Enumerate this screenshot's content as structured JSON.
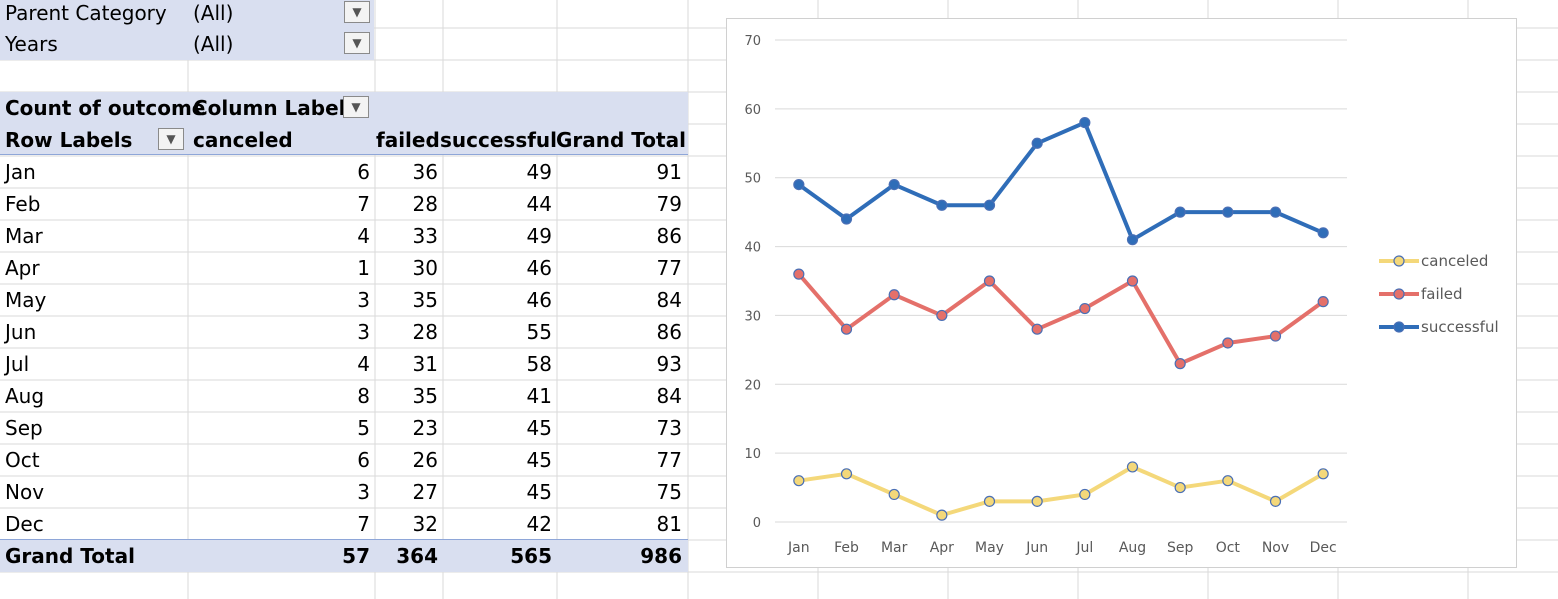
{
  "filters": [
    {
      "label": "Parent Category",
      "value": "(All)"
    },
    {
      "label": "Years",
      "value": "(All)"
    }
  ],
  "pivot": {
    "header_value_label": "Count of outcome",
    "header_column_labels": "Column Labels",
    "row_labels_header": "Row Labels",
    "columns": [
      "canceled",
      "failed",
      "successful",
      "Grand Total"
    ],
    "rows": [
      {
        "label": "Jan",
        "values": [
          "6",
          "36",
          "49",
          "91"
        ]
      },
      {
        "label": "Feb",
        "values": [
          "7",
          "28",
          "44",
          "79"
        ]
      },
      {
        "label": "Mar",
        "values": [
          "4",
          "33",
          "49",
          "86"
        ]
      },
      {
        "label": "Apr",
        "values": [
          "1",
          "30",
          "46",
          "77"
        ]
      },
      {
        "label": "May",
        "values": [
          "3",
          "35",
          "46",
          "84"
        ]
      },
      {
        "label": "Jun",
        "values": [
          "3",
          "28",
          "55",
          "86"
        ]
      },
      {
        "label": "Jul",
        "values": [
          "4",
          "31",
          "58",
          "93"
        ]
      },
      {
        "label": "Aug",
        "values": [
          "8",
          "35",
          "41",
          "84"
        ]
      },
      {
        "label": "Sep",
        "values": [
          "5",
          "23",
          "45",
          "73"
        ]
      },
      {
        "label": "Oct",
        "values": [
          "6",
          "26",
          "45",
          "77"
        ]
      },
      {
        "label": "Nov",
        "values": [
          "3",
          "27",
          "45",
          "75"
        ]
      },
      {
        "label": "Dec",
        "values": [
          "7",
          "32",
          "42",
          "81"
        ]
      }
    ],
    "total": {
      "label": "Grand Total",
      "values": [
        "57",
        "364",
        "565",
        "986"
      ]
    }
  },
  "chart_data": {
    "type": "line",
    "title": "",
    "xlabel": "",
    "ylabel": "",
    "categories": [
      "Jan",
      "Feb",
      "Mar",
      "Apr",
      "May",
      "Jun",
      "Jul",
      "Aug",
      "Sep",
      "Oct",
      "Nov",
      "Dec"
    ],
    "ylim": [
      0,
      70
    ],
    "yticks": [
      0,
      10,
      20,
      30,
      40,
      50,
      60,
      70
    ],
    "grid": true,
    "legend_position": "right",
    "series": [
      {
        "name": "canceled",
        "color": "#f4d87a",
        "values": [
          6,
          7,
          4,
          1,
          3,
          3,
          4,
          8,
          5,
          6,
          3,
          7
        ]
      },
      {
        "name": "failed",
        "color": "#e4706a",
        "values": [
          36,
          28,
          33,
          30,
          35,
          28,
          31,
          35,
          23,
          26,
          27,
          32
        ]
      },
      {
        "name": "successful",
        "color": "#2f6db8",
        "values": [
          49,
          44,
          49,
          46,
          46,
          55,
          58,
          41,
          45,
          45,
          45,
          42
        ]
      }
    ]
  }
}
